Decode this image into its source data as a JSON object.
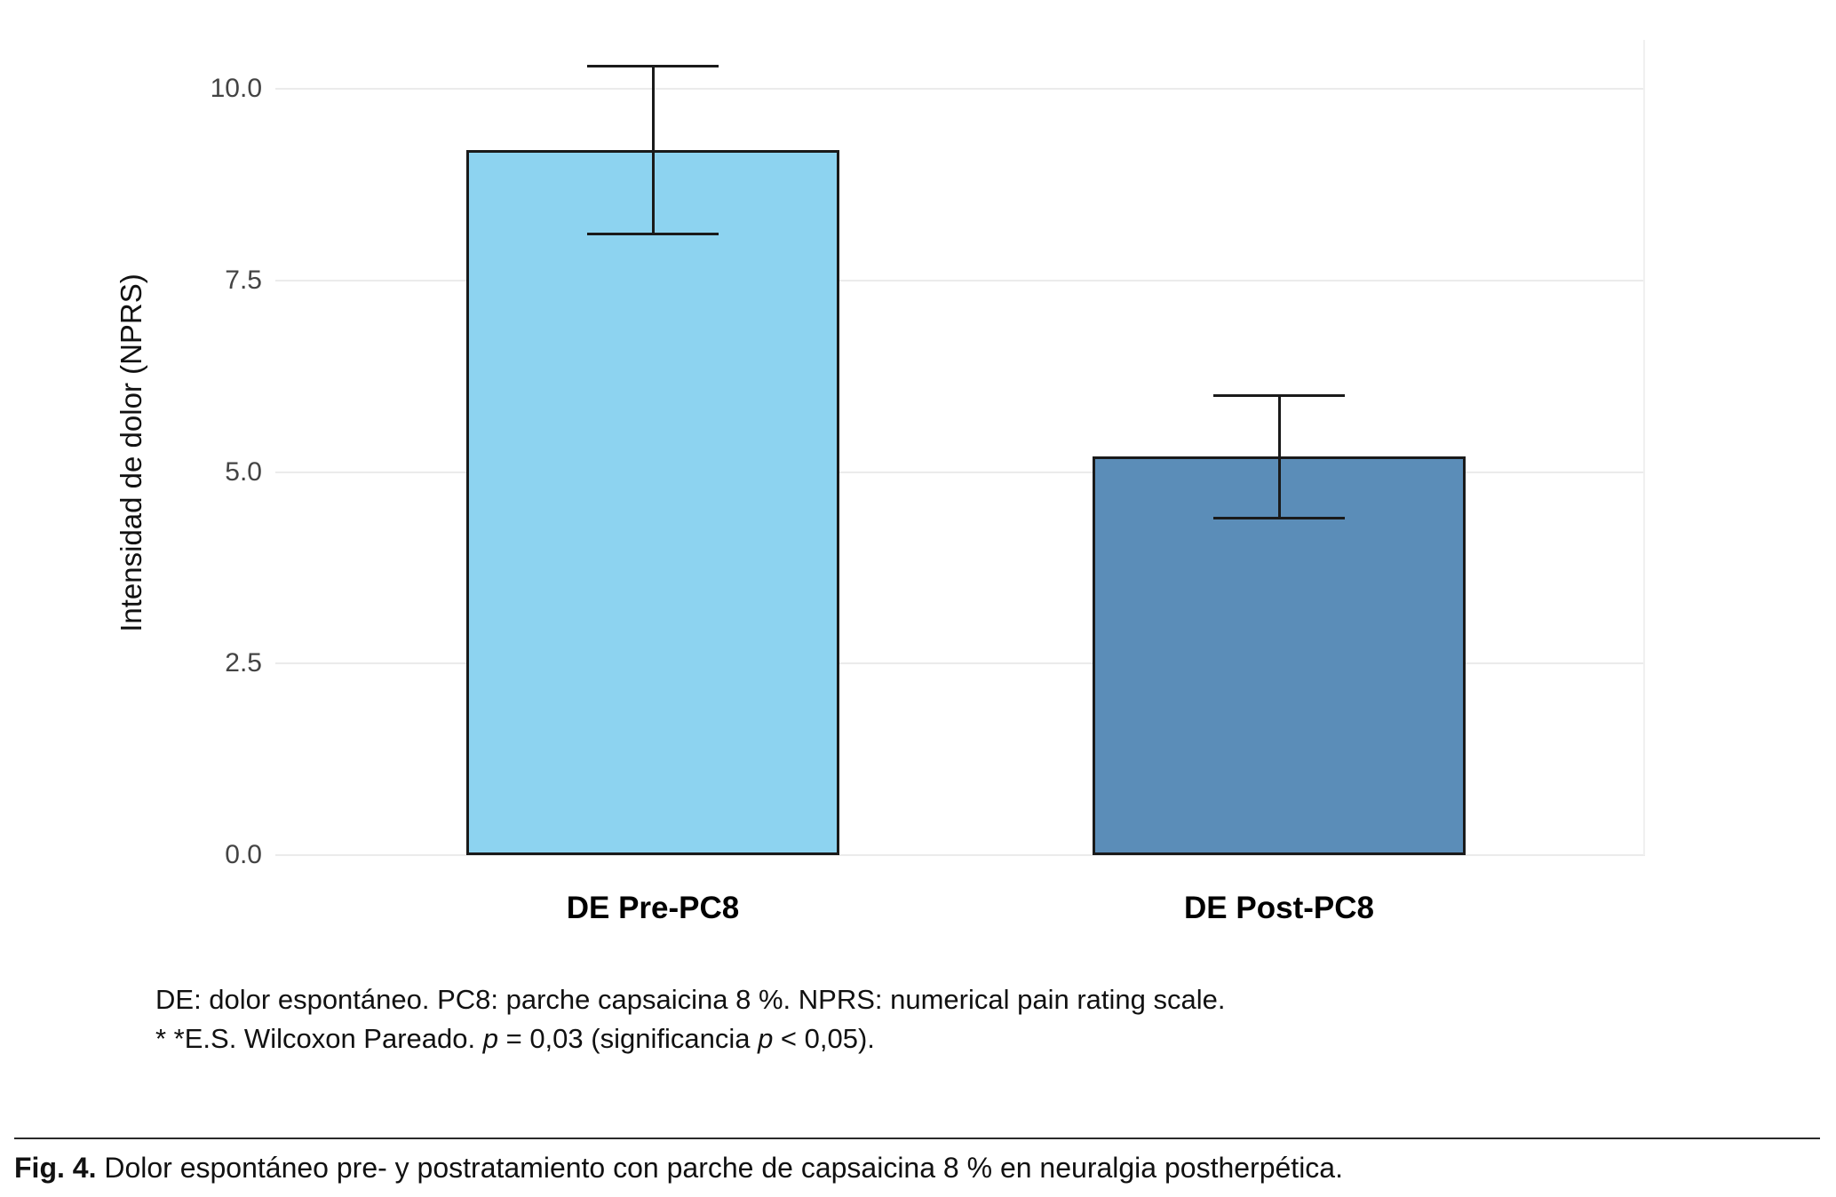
{
  "figure": {
    "footnote_line1": "DE: dolor espontáneo. PC8: parche capsaicina 8 %. NPRS: numerical pain rating scale.",
    "footnote_line2_prefix": "* *E.S. Wilcoxon Pareado. ",
    "footnote_line2_p1": "p",
    "footnote_line2_mid": " = 0,03 (significancia ",
    "footnote_line2_p2": "p",
    "footnote_line2_suffix": " < 0,05).",
    "caption_label": "Fig. 4.",
    "caption_text": " Dolor espontáneo pre- y postratamiento con parche de capsaicina 8 % en neuralgia postherpética."
  },
  "chart_data": {
    "type": "bar",
    "title": "",
    "xlabel": "",
    "ylabel": "Intensidad de dolor (NPRS)",
    "ylim": [
      0,
      10.6
    ],
    "yticks": [
      0.0,
      2.5,
      5.0,
      7.5,
      10.0
    ],
    "ytick_labels": [
      "0.0",
      "2.5",
      "5.0",
      "7.5",
      "10.0"
    ],
    "categories": [
      "DE Pre-PC8",
      "DE Post-PC8"
    ],
    "values": [
      9.2,
      5.2
    ],
    "error_low": [
      8.1,
      4.4
    ],
    "error_high": [
      10.3,
      6.0
    ],
    "bar_colors": [
      "#8dd3f0",
      "#5b8db8"
    ],
    "bar_edge_color": "#1a1a1a",
    "grid": true,
    "gridline_color": "#ebebeb",
    "legend": "none",
    "background": "#ffffff"
  }
}
